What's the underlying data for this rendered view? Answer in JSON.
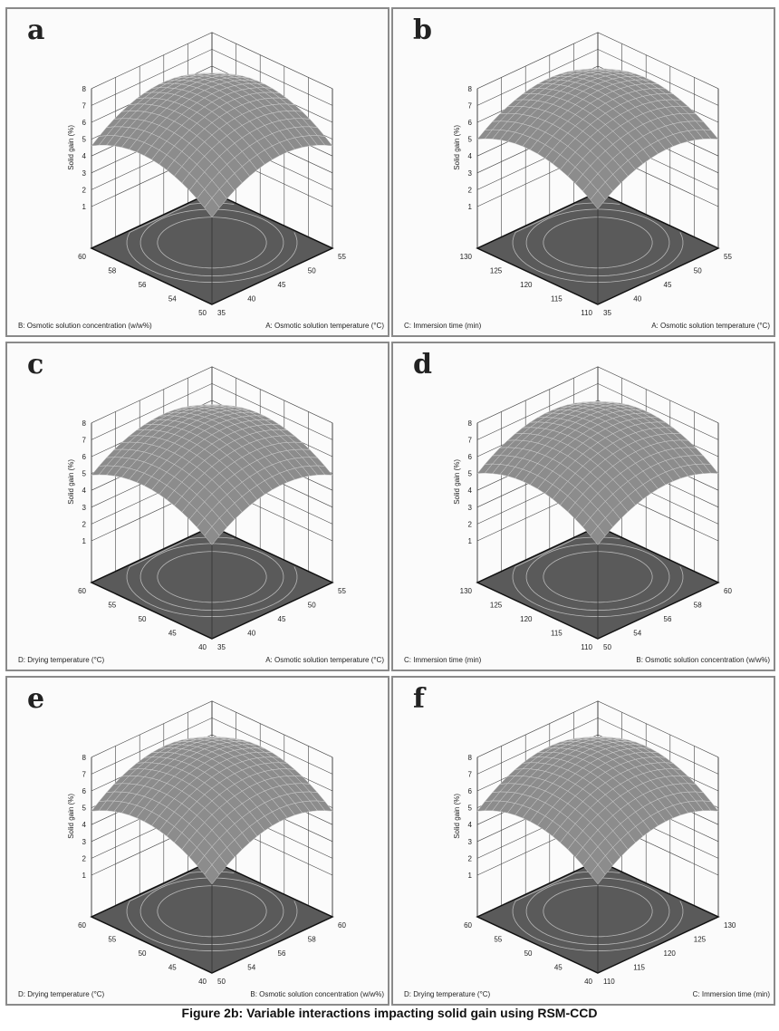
{
  "caption": "Figure 2b: Variable interactions impacting solid gain using RSM-CCD",
  "chart_data": [
    {
      "type": "surface",
      "panel": "a",
      "zlabel": "Solid gain (%)",
      "zticks": [
        "1",
        "2",
        "3",
        "4",
        "5",
        "6",
        "7",
        "8"
      ],
      "zlim": [
        1,
        8
      ],
      "left_axis": {
        "label": "B: Osmotic solution concentration (w/w%)",
        "ticks": [
          "50",
          "54",
          "56",
          "58",
          "60"
        ]
      },
      "right_axis": {
        "label": "A: Osmotic solution temperature (°C)",
        "ticks": [
          "35",
          "40",
          "45",
          "50",
          "55"
        ]
      },
      "surface_model": {
        "peak": 7.2,
        "quad": 1.3,
        "lin": 0.9
      }
    },
    {
      "type": "surface",
      "panel": "b",
      "zlabel": "Solid gain (%)",
      "zticks": [
        "1",
        "2",
        "3",
        "4",
        "5",
        "6",
        "7",
        "8"
      ],
      "zlim": [
        1,
        8
      ],
      "left_axis": {
        "label": "C: Immersion time (min)",
        "ticks": [
          "110",
          "115",
          "120",
          "125",
          "130"
        ]
      },
      "right_axis": {
        "label": "A: Osmotic solution temperature (°C)",
        "ticks": [
          "35",
          "40",
          "45",
          "50",
          "55"
        ]
      },
      "surface_model": {
        "peak": 7.4,
        "quad": 1.2,
        "lin": 0.8
      }
    },
    {
      "type": "surface",
      "panel": "c",
      "zlabel": "Solid gain (%)",
      "zticks": [
        "1",
        "2",
        "3",
        "4",
        "5",
        "6",
        "7",
        "8"
      ],
      "zlim": [
        1,
        8
      ],
      "left_axis": {
        "label": "D: Drying temperature (°C)",
        "ticks": [
          "40",
          "45",
          "50",
          "55",
          "60"
        ]
      },
      "right_axis": {
        "label": "A: Osmotic solution temperature (°C)",
        "ticks": [
          "35",
          "40",
          "45",
          "50",
          "55"
        ]
      },
      "surface_model": {
        "peak": 7.3,
        "quad": 1.2,
        "lin": 0.8
      }
    },
    {
      "type": "surface",
      "panel": "d",
      "zlabel": "Solid gain (%)",
      "zticks": [
        "1",
        "2",
        "3",
        "4",
        "5",
        "6",
        "7",
        "8"
      ],
      "zlim": [
        1,
        8
      ],
      "left_axis": {
        "label": "C: Immersion time (min)",
        "ticks": [
          "110",
          "115",
          "120",
          "125",
          "130"
        ]
      },
      "right_axis": {
        "label": "B: Osmotic solution concentration (w/w%)",
        "ticks": [
          "50",
          "54",
          "56",
          "58",
          "60"
        ]
      },
      "surface_model": {
        "peak": 7.4,
        "quad": 1.2,
        "lin": 0.9
      }
    },
    {
      "type": "surface",
      "panel": "e",
      "zlabel": "Solid gain (%)",
      "zticks": [
        "1",
        "2",
        "3",
        "4",
        "5",
        "6",
        "7",
        "8"
      ],
      "zlim": [
        1,
        8
      ],
      "left_axis": {
        "label": "D: Drying temperature (°C)",
        "ticks": [
          "40",
          "45",
          "50",
          "55",
          "60"
        ]
      },
      "right_axis": {
        "label": "B: Osmotic solution concentration (w/w%)",
        "ticks": [
          "50",
          "54",
          "56",
          "58",
          "60"
        ]
      },
      "surface_model": {
        "peak": 7.4,
        "quad": 1.3,
        "lin": 1.0
      }
    },
    {
      "type": "surface",
      "panel": "f",
      "zlabel": "Solid gain (%)",
      "zticks": [
        "1",
        "2",
        "3",
        "4",
        "5",
        "6",
        "7",
        "8"
      ],
      "zlim": [
        1,
        8
      ],
      "left_axis": {
        "label": "D: Drying temperature (°C)",
        "ticks": [
          "40",
          "45",
          "50",
          "55",
          "60"
        ]
      },
      "right_axis": {
        "label": "C: Immersion time (min)",
        "ticks": [
          "110",
          "115",
          "120",
          "125",
          "130"
        ]
      },
      "surface_model": {
        "peak": 7.4,
        "quad": 1.3,
        "lin": 1.0
      }
    }
  ],
  "colors": {
    "surface": "#8c8c8c",
    "grid": "#d0d0d0",
    "floor": "#5a5a5a",
    "contour": "#b8b8b8",
    "border": "#8a8a8a"
  }
}
